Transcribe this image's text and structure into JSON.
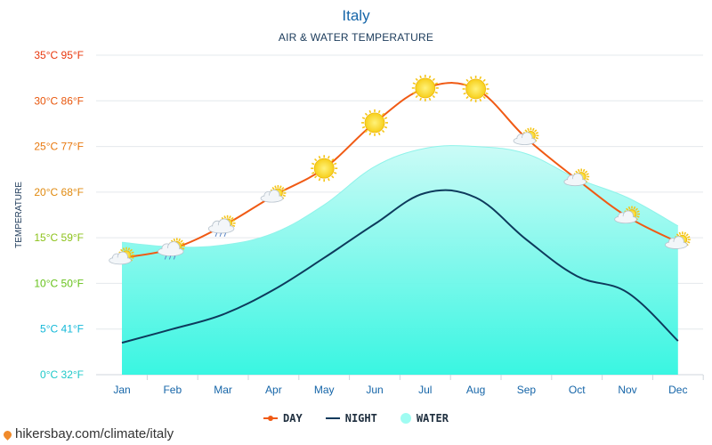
{
  "title": "Italy",
  "subtitle": "AIR & WATER TEMPERATURE",
  "source": "hikersbay.com/climate/italy",
  "colors": {
    "day": "#f05a14",
    "night": "#0d3a5c",
    "water": "#2ff5e0",
    "title": "#1565a8"
  },
  "legend": {
    "day": "DAY",
    "night": "NIGHT",
    "water": "WATER"
  },
  "chart_data": {
    "type": "line",
    "ylabel": "TEMPERATURE",
    "ylim": [
      0,
      35
    ],
    "grid": true,
    "legend_position": "bottom-center",
    "categories": [
      "Jan",
      "Feb",
      "Mar",
      "Apr",
      "May",
      "Jun",
      "Jul",
      "Aug",
      "Sep",
      "Oct",
      "Nov",
      "Dec"
    ],
    "y_ticks": [
      {
        "value": 0,
        "label": "0°C 32°F",
        "color": "#1ec8c8"
      },
      {
        "value": 5,
        "label": "5°C 41°F",
        "color": "#14b8d8"
      },
      {
        "value": 10,
        "label": "10°C 50°F",
        "color": "#66c21a"
      },
      {
        "value": 15,
        "label": "15°C 59°F",
        "color": "#8cc21a"
      },
      {
        "value": 20,
        "label": "20°C 68°F",
        "color": "#e08a10"
      },
      {
        "value": 25,
        "label": "25°C 77°F",
        "color": "#e8780e"
      },
      {
        "value": 30,
        "label": "30°C 86°F",
        "color": "#e8580e"
      },
      {
        "value": 35,
        "label": "35°C 95°F",
        "color": "#e8380e"
      }
    ],
    "series": [
      {
        "name": "DAY",
        "values": [
          12.8,
          13.8,
          16.3,
          19.6,
          22.6,
          27.6,
          31.4,
          31.3,
          25.9,
          21.4,
          17.3,
          14.5
        ]
      },
      {
        "name": "NIGHT",
        "values": [
          3.5,
          5.0,
          6.6,
          9.3,
          12.8,
          16.5,
          19.9,
          19.4,
          14.8,
          10.8,
          9.0,
          3.7
        ]
      },
      {
        "name": "WATER",
        "values": [
          14.5,
          14.0,
          14.2,
          15.5,
          18.6,
          22.8,
          24.8,
          25.0,
          24.2,
          21.5,
          19.4,
          16.3
        ]
      }
    ],
    "weather_icons": [
      "sun-cloud-icon",
      "sun-cloud-rain-icon",
      "sun-cloud-rain-icon",
      "sun-cloud-icon",
      "sun-icon",
      "sun-icon",
      "sun-icon",
      "sun-icon",
      "sun-cloud-icon",
      "sun-cloud-icon",
      "sun-cloud-icon",
      "sun-cloud-icon"
    ]
  }
}
